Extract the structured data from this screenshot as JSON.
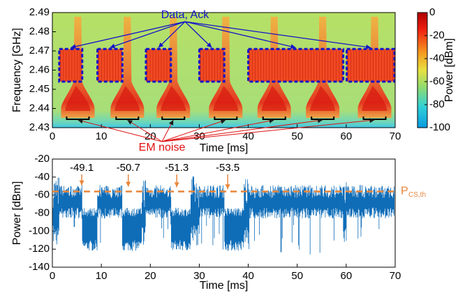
{
  "chart_data": [
    {
      "type": "spectrogram",
      "xlabel": "Time [ms]",
      "ylabel": "Frequency [GHz]",
      "xlim": [
        0,
        70
      ],
      "ylim": [
        2.43,
        2.49
      ],
      "xticks": [
        0,
        10,
        20,
        30,
        40,
        50,
        60,
        70
      ],
      "yticks": [
        2.43,
        2.44,
        2.45,
        2.46,
        2.47,
        2.48,
        2.49
      ],
      "clim": [
        -100,
        0
      ],
      "cticks": [
        0,
        -20,
        -40,
        -60,
        -80,
        -100
      ],
      "clabel": "Power [dBm]",
      "packets": [
        {
          "t": [
            1.4,
            6.1
          ],
          "f": [
            2.454,
            2.471
          ]
        },
        {
          "t": [
            9.2,
            14.3
          ],
          "f": [
            2.454,
            2.471
          ]
        },
        {
          "t": [
            19.1,
            24.2
          ],
          "f": [
            2.454,
            2.471
          ]
        },
        {
          "t": [
            30,
            35.1
          ],
          "f": [
            2.454,
            2.471
          ]
        },
        {
          "t": [
            40,
            59.4
          ],
          "f": [
            2.454,
            2.471
          ]
        },
        {
          "t": [
            60.1,
            70
          ],
          "f": [
            2.454,
            2.471
          ]
        }
      ],
      "noise_t": [
        5.2,
        15.3,
        24.7,
        35.4,
        45.3,
        55.2,
        65.8
      ],
      "packet_label": "Data, Ack",
      "noise_label": "EM noise"
    },
    {
      "type": "line",
      "xlabel": "Time [ms]",
      "ylabel": "Power [dBm]",
      "xlim": [
        0,
        70
      ],
      "ylim": [
        -140,
        -20
      ],
      "xticks": [
        0,
        10,
        20,
        30,
        40,
        50,
        60,
        70
      ],
      "yticks": [
        -20,
        -40,
        -60,
        -80,
        -100,
        -120,
        -140
      ],
      "color": "#0f6db8",
      "threshold": -56,
      "threshold_label": "P",
      "threshold_sub": "CS,th",
      "threshold_color": "#e8863a",
      "peaks": [
        {
          "x": 6.0,
          "y": -49.1
        },
        {
          "x": 15.5,
          "y": -50.7
        },
        {
          "x": 25.4,
          "y": -51.3
        },
        {
          "x": 35.8,
          "y": -53.5
        }
      ]
    }
  ]
}
